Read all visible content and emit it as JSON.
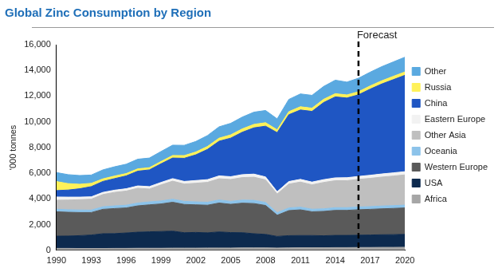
{
  "chart_data": {
    "type": "area",
    "title": "Global Zinc Consumption by Region",
    "y_label": "'000 tonnes",
    "stacked": true,
    "grid": false,
    "legend": "right",
    "x": [
      1990,
      1991,
      1992,
      1993,
      1994,
      1995,
      1996,
      1997,
      1998,
      1999,
      2000,
      2001,
      2002,
      2003,
      2004,
      2005,
      2006,
      2007,
      2008,
      2009,
      2010,
      2011,
      2012,
      2013,
      2014,
      2015,
      2016,
      2017,
      2018,
      2019,
      2020
    ],
    "xlim": [
      1990,
      2020
    ],
    "xticks": [
      1990,
      1993,
      1996,
      1999,
      2002,
      2005,
      2008,
      2011,
      2014,
      2017,
      2020
    ],
    "ylim": [
      0,
      16000
    ],
    "yticks": [
      0,
      {
        "value": 2000,
        "label": "2,000"
      },
      {
        "value": 4000,
        "label": "4,000"
      },
      {
        "value": 6000,
        "label": "6,000"
      },
      {
        "value": 8000,
        "label": "8,000"
      },
      {
        "value": 10000,
        "label": "10,000"
      },
      {
        "value": 12000,
        "label": "12,000"
      },
      {
        "value": 14000,
        "label": "14,000"
      },
      {
        "value": 16000,
        "label": "16,000"
      }
    ],
    "annotations": [
      {
        "x": 2016,
        "label": "Forecast",
        "line_style": "dashed"
      }
    ],
    "series": [
      {
        "name": "Africa",
        "color": "#a6a6a6",
        "values": [
          150,
          150,
          140,
          140,
          140,
          150,
          150,
          160,
          160,
          160,
          170,
          170,
          170,
          180,
          180,
          180,
          190,
          190,
          190,
          180,
          190,
          200,
          200,
          200,
          210,
          210,
          220,
          220,
          230,
          230,
          240
        ]
      },
      {
        "name": "USA",
        "color": "#0d2a4e",
        "values": [
          950,
          960,
          1000,
          1050,
          1150,
          1150,
          1200,
          1250,
          1280,
          1300,
          1320,
          1200,
          1220,
          1180,
          1250,
          1200,
          1180,
          1100,
          1050,
          900,
          950,
          950,
          950,
          930,
          950,
          950,
          960,
          970,
          980,
          990,
          1000
        ]
      },
      {
        "name": "Western Europe",
        "color": "#5a5a5a",
        "values": [
          1900,
          1850,
          1800,
          1750,
          1900,
          1950,
          1950,
          2050,
          2100,
          2150,
          2250,
          2200,
          2150,
          2150,
          2250,
          2200,
          2300,
          2350,
          2250,
          1650,
          1950,
          2000,
          1850,
          1900,
          1950,
          1950,
          1980,
          2000,
          2020,
          2040,
          2060
        ]
      },
      {
        "name": "Oceania",
        "color": "#8cc3ea",
        "values": [
          200,
          200,
          200,
          190,
          200,
          210,
          210,
          220,
          230,
          230,
          240,
          240,
          230,
          230,
          240,
          230,
          240,
          250,
          240,
          200,
          210,
          210,
          200,
          200,
          210,
          210,
          210,
          210,
          220,
          220,
          220
        ]
      },
      {
        "name": "Other Asia",
        "color": "#bfbfbf",
        "values": [
          700,
          750,
          800,
          850,
          950,
          1050,
          1100,
          1150,
          1000,
          1250,
          1400,
          1350,
          1450,
          1550,
          1650,
          1700,
          1750,
          1800,
          1750,
          1450,
          1850,
          1950,
          1900,
          2050,
          2100,
          2100,
          2150,
          2200,
          2250,
          2300,
          2350
        ]
      },
      {
        "name": "Eastern Europe",
        "color": "#f2f2f2",
        "values": [
          250,
          230,
          200,
          180,
          170,
          170,
          180,
          180,
          190,
          190,
          200,
          200,
          210,
          210,
          220,
          220,
          230,
          240,
          230,
          180,
          200,
          210,
          210,
          220,
          220,
          230,
          230,
          240,
          240,
          250,
          250
        ]
      },
      {
        "name": "China",
        "color": "#1f56c3",
        "values": [
          500,
          550,
          650,
          800,
          850,
          900,
          1000,
          1150,
          1300,
          1450,
          1600,
          1800,
          2000,
          2350,
          2700,
          3000,
          3300,
          3600,
          3950,
          4600,
          5200,
          5400,
          5500,
          6000,
          6300,
          6200,
          6350,
          6700,
          7000,
          7250,
          7500
        ]
      },
      {
        "name": "Russia",
        "color": "#fff159",
        "values": [
          700,
          500,
          350,
          250,
          200,
          200,
          180,
          180,
          170,
          180,
          200,
          210,
          220,
          230,
          240,
          250,
          260,
          270,
          270,
          220,
          240,
          250,
          250,
          250,
          250,
          240,
          240,
          250,
          250,
          260,
          260
        ]
      },
      {
        "name": "Other",
        "color": "#5aa9e0",
        "values": [
          700,
          700,
          680,
          650,
          700,
          720,
          730,
          750,
          750,
          780,
          800,
          800,
          820,
          850,
          880,
          900,
          920,
          950,
          950,
          850,
          950,
          1000,
          1000,
          1000,
          1050,
          1000,
          1050,
          1070,
          1100,
          1120,
          1150
        ]
      }
    ]
  }
}
